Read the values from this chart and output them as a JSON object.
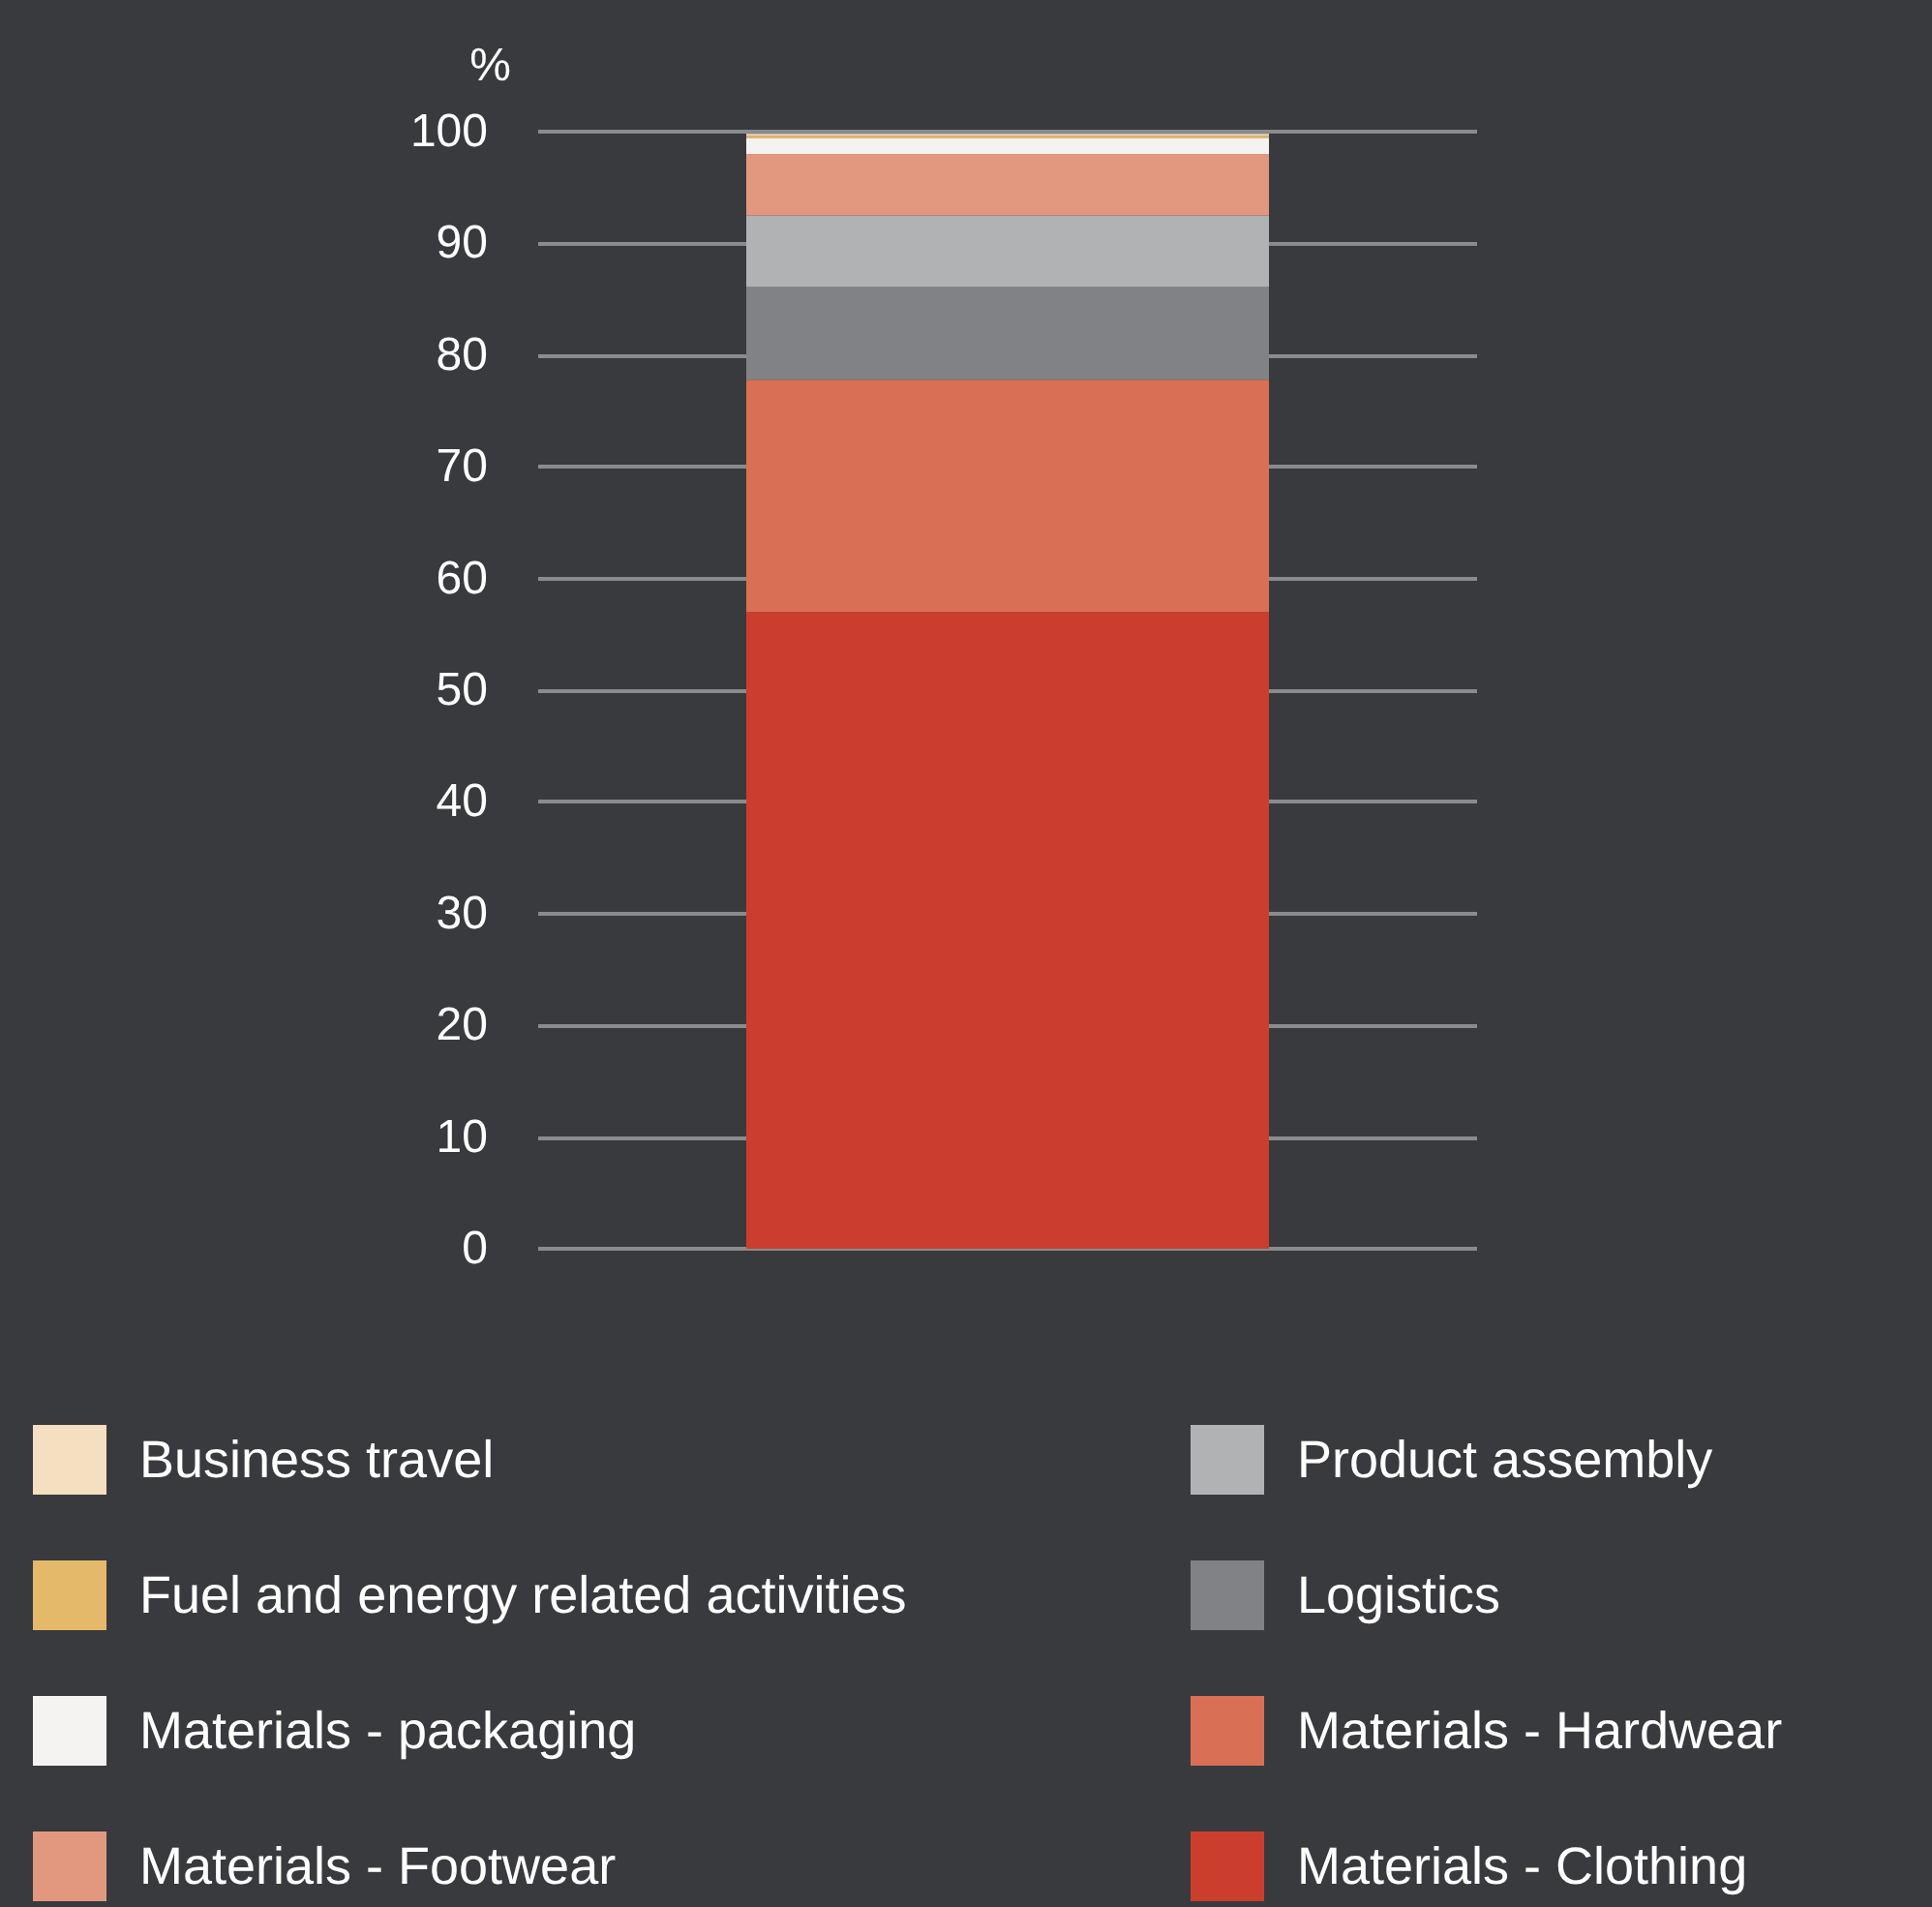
{
  "chart_data": {
    "type": "bar",
    "stacked": true,
    "ylabel": "%",
    "categories": [
      null
    ],
    "ylim": [
      0,
      100
    ],
    "yticks": [
      0,
      10,
      20,
      30,
      40,
      50,
      60,
      70,
      80,
      90,
      100
    ],
    "grid": "y",
    "legend": "bottom",
    "series": [
      {
        "name": "Materials - Clothing",
        "color": "#cb3e2e",
        "values": [
          57.0
        ]
      },
      {
        "name": "Materials - Hardwear",
        "color": "#d97055",
        "values": [
          20.8
        ]
      },
      {
        "name": "Logistics",
        "color": "#808285",
        "values": [
          8.3
        ]
      },
      {
        "name": "Product assembly",
        "color": "#b1b2b4",
        "values": [
          6.4
        ]
      },
      {
        "name": "Materials - Footwear",
        "color": "#e2987e",
        "values": [
          5.5
        ]
      },
      {
        "name": "Materials - packaging",
        "color": "#f5f3f1",
        "values": [
          1.4
        ]
      },
      {
        "name": "Fuel and energy related activities",
        "color": "#e5b96a",
        "values": [
          0.2
        ]
      },
      {
        "name": "Business travel",
        "color": "#f4dfc0",
        "values": [
          0.2
        ]
      }
    ]
  }
}
